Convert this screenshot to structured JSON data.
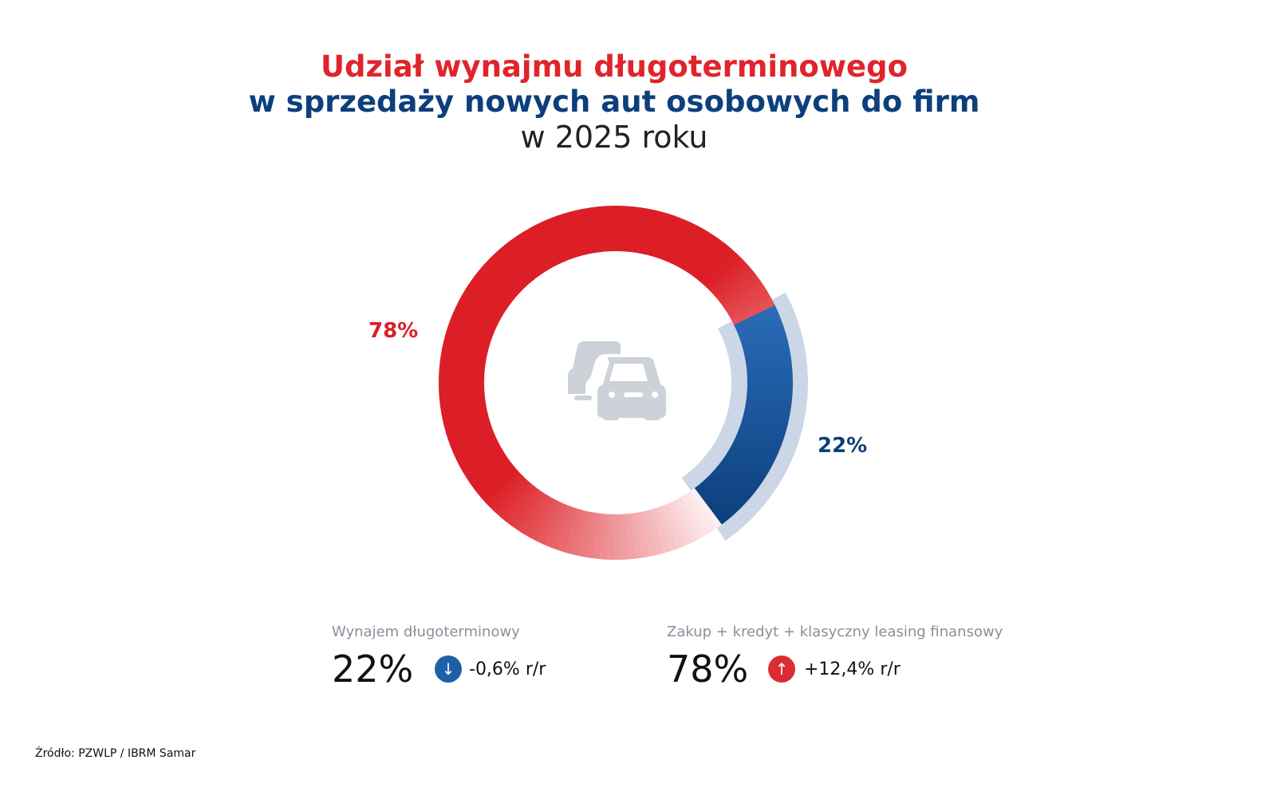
{
  "chart_data": {
    "type": "pie",
    "title": "Udział wynajmu długoterminowego",
    "subtitle": "w sprzedaży nowych aut osobowych do firm",
    "subtitle2": "w 2025 roku",
    "categories": [
      "Wynajem długoterminowy",
      "Zakup + kredyt + klasyczny leasing finansowy"
    ],
    "values": [
      22,
      78
    ],
    "data_labels": [
      "22%",
      "78%"
    ],
    "colors": [
      "#1f5fa8",
      "#dc1f26"
    ],
    "highlight_color": "#cbd6e6",
    "center_icon": "cars-icon",
    "legend": [
      {
        "name": "Wynajem długoterminowy",
        "value": "22%",
        "change": "-0,6% r/r",
        "direction": "down",
        "icon": "arrow-down-icon",
        "color": "#1f5fa8"
      },
      {
        "name": "Zakup + kredyt + klasyczny leasing finansowy",
        "value": "78%",
        "change": "+12,4% r/r",
        "direction": "up",
        "icon": "arrow-up-icon",
        "color": "#dc1f26"
      }
    ],
    "legend_placement": "bottom",
    "source": "Źródło: PZWLP / IBRM Samar"
  }
}
